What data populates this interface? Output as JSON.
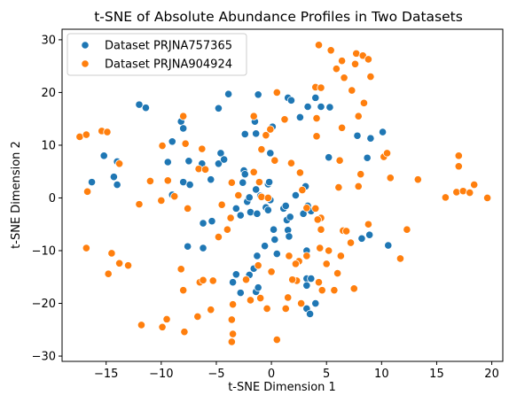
{
  "chart_data": {
    "type": "scatter",
    "title": "t-SNE of Absolute Abundance Profiles in Two Datasets",
    "xlabel": "t-SNE Dimension 1",
    "ylabel": "t-SNE Dimension 2",
    "xlim": [
      -19,
      21
    ],
    "ylim": [
      -31,
      32
    ],
    "xticks": [
      -15,
      -10,
      -5,
      0,
      5,
      10,
      15,
      20
    ],
    "yticks": [
      -30,
      -20,
      -10,
      0,
      10,
      20,
      30
    ],
    "grid": false,
    "legend_position": "top-left",
    "series": [
      {
        "name": "Dataset PRJNA757365",
        "color": "#1f77b4",
        "points": [
          [
            -15.2,
            8.0
          ],
          [
            -14.0,
            6.9
          ],
          [
            -14.3,
            4.0
          ],
          [
            -14.0,
            2.5
          ],
          [
            -16.3,
            3.0
          ],
          [
            -12.0,
            17.7
          ],
          [
            -11.4,
            17.1
          ],
          [
            -9.0,
            10.7
          ],
          [
            -9.4,
            6.8
          ],
          [
            -8.2,
            14.5
          ],
          [
            -8.0,
            13.2
          ],
          [
            -7.5,
            7.0
          ],
          [
            -8.0,
            3.0
          ],
          [
            -7.4,
            2.5
          ],
          [
            -9.0,
            0.6
          ],
          [
            -6.3,
            6.5
          ],
          [
            -5.5,
            3.5
          ],
          [
            -4.8,
            6.5
          ],
          [
            -4.6,
            8.5
          ],
          [
            -4.3,
            7.3
          ],
          [
            -3.9,
            19.7
          ],
          [
            -4.8,
            17.0
          ],
          [
            -6.2,
            -4.8
          ],
          [
            -5.4,
            -4.4
          ],
          [
            -7.6,
            -9.2
          ],
          [
            -6.2,
            -9.5
          ],
          [
            -3.2,
            -2.0
          ],
          [
            -2.8,
            -3.3
          ],
          [
            -2.5,
            5.2
          ],
          [
            -2.4,
            4.5
          ],
          [
            -2.6,
            2.9
          ],
          [
            -2.2,
            -0.7
          ],
          [
            -2.0,
            0.1
          ],
          [
            -1.9,
            -2.7
          ],
          [
            -1.3,
            -3.0
          ],
          [
            -1.4,
            1.6
          ],
          [
            -1.0,
            0.4
          ],
          [
            -0.5,
            -1.8
          ],
          [
            -0.3,
            2.6
          ],
          [
            -0.1,
            -0.4
          ],
          [
            -0.1,
            8.5
          ],
          [
            -0.2,
            3.0
          ],
          [
            -0.3,
            -2.3
          ],
          [
            0.2,
            -6.0
          ],
          [
            0.3,
            -7.9
          ],
          [
            0.5,
            -10.6
          ],
          [
            -0.6,
            -9.1
          ],
          [
            -1.3,
            -11.0
          ],
          [
            -1.6,
            -13.4
          ],
          [
            -2.0,
            -14.6
          ],
          [
            -3.2,
            -14.5
          ],
          [
            -3.5,
            -16.0
          ],
          [
            -2.8,
            -18.0
          ],
          [
            -1.4,
            -17.8
          ],
          [
            -1.2,
            -17.0
          ],
          [
            -1.5,
            14.5
          ],
          [
            -2.4,
            12.1
          ],
          [
            -1.4,
            12.2
          ],
          [
            -1.2,
            19.6
          ],
          [
            0.1,
            13.5
          ],
          [
            1.1,
            -2.0
          ],
          [
            1.3,
            -1.5
          ],
          [
            1.4,
            -4.2
          ],
          [
            1.7,
            -3.6
          ],
          [
            1.5,
            -6.1
          ],
          [
            1.6,
            -7.3
          ],
          [
            2.2,
            0.5
          ],
          [
            2.9,
            -3.0
          ],
          [
            2.6,
            15.3
          ],
          [
            3.3,
            17.3
          ],
          [
            4.0,
            19.0
          ],
          [
            1.5,
            19.0
          ],
          [
            1.8,
            18.5
          ],
          [
            3.1,
            2.2
          ],
          [
            3.3,
            -1.5
          ],
          [
            3.6,
            -2.5
          ],
          [
            3.2,
            -10.0
          ],
          [
            3.2,
            -15.3
          ],
          [
            3.2,
            -16.6
          ],
          [
            3.6,
            -15.3
          ],
          [
            3.2,
            -21.0
          ],
          [
            3.5,
            -22.0
          ],
          [
            4.0,
            -20.0
          ],
          [
            5.3,
            17.2
          ],
          [
            7.8,
            11.8
          ],
          [
            9.0,
            11.3
          ],
          [
            8.7,
            7.6
          ],
          [
            10.1,
            12.5
          ],
          [
            8.8,
            -5.0
          ],
          [
            8.2,
            -7.7
          ],
          [
            8.9,
            -7.0
          ],
          [
            10.6,
            -9.0
          ],
          [
            5.2,
            7.7
          ],
          [
            4.5,
            17.3
          ]
        ]
      },
      {
        "name": "Dataset PRJNA904924",
        "color": "#ff7f0e",
        "points": [
          [
            -17.4,
            11.6
          ],
          [
            -16.8,
            12.0
          ],
          [
            -15.4,
            12.7
          ],
          [
            -13.8,
            6.5
          ],
          [
            -14.5,
            -10.5
          ],
          [
            -16.7,
            1.2
          ],
          [
            -16.8,
            -9.5
          ],
          [
            -13.8,
            -12.4
          ],
          [
            -14.8,
            -14.4
          ],
          [
            -13.0,
            -12.8
          ],
          [
            -12.0,
            -1.2
          ],
          [
            -11.0,
            3.2
          ],
          [
            -10.0,
            -0.5
          ],
          [
            -9.9,
            9.9
          ],
          [
            -9.4,
            3.3
          ],
          [
            -8.8,
            0.3
          ],
          [
            -8.0,
            15.5
          ],
          [
            -7.8,
            10.3
          ],
          [
            -6.6,
            5.5
          ],
          [
            -6.3,
            9.3
          ],
          [
            -6.0,
            5.4
          ],
          [
            -8.2,
            -13.5
          ],
          [
            -7.6,
            -2.0
          ],
          [
            -8.0,
            -17.5
          ],
          [
            -6.5,
            -16.0
          ],
          [
            -6.2,
            -15.6
          ],
          [
            -5.5,
            -21.2
          ],
          [
            -6.7,
            -22.5
          ],
          [
            -7.9,
            -25.4
          ],
          [
            -9.5,
            -23.0
          ],
          [
            -9.9,
            -24.5
          ],
          [
            -11.8,
            -24.1
          ],
          [
            -5.3,
            -15.7
          ],
          [
            -4.8,
            -7.4
          ],
          [
            -4.5,
            -1.3
          ],
          [
            -3.0,
            0.5
          ],
          [
            -3.7,
            -3.8
          ],
          [
            -3.6,
            2.9
          ],
          [
            -3.5,
            -20.2
          ],
          [
            -3.6,
            -23.1
          ],
          [
            -3.5,
            -25.8
          ],
          [
            -3.6,
            -27.3
          ],
          [
            -2.3,
            -15.5
          ],
          [
            -1.9,
            -19.4
          ],
          [
            -1.6,
            4.9
          ],
          [
            -1.1,
            3.0
          ],
          [
            -0.9,
            0.2
          ],
          [
            -0.3,
            0.0
          ],
          [
            -0.9,
            9.2
          ],
          [
            -0.5,
            11.9
          ],
          [
            -0.1,
            13.0
          ],
          [
            -1.6,
            15.5
          ],
          [
            0.5,
            20.0
          ],
          [
            1.2,
            14.9
          ],
          [
            0.3,
            7.1
          ],
          [
            1.8,
            6.6
          ],
          [
            2.6,
            4.8
          ],
          [
            2.8,
            1.5
          ],
          [
            3.2,
            -1.9
          ],
          [
            4.0,
            -2.0
          ],
          [
            4.5,
            -3.8
          ],
          [
            4.2,
            -4.1
          ],
          [
            4.5,
            -6.0
          ],
          [
            5.2,
            -10.0
          ],
          [
            5.0,
            -12.5
          ],
          [
            2.5,
            -12.0
          ],
          [
            2.3,
            -15.7
          ],
          [
            1.9,
            -15.5
          ],
          [
            1.5,
            -18.9
          ],
          [
            2.7,
            -20.0
          ],
          [
            1.3,
            -21.0
          ],
          [
            -0.4,
            -21.0
          ],
          [
            -1.0,
            -19.0
          ],
          [
            -1.2,
            -12.8
          ],
          [
            0.0,
            -14.0
          ],
          [
            1.6,
            -11.0
          ],
          [
            2.2,
            -12.5
          ],
          [
            0.5,
            -26.9
          ],
          [
            3.2,
            -11.0
          ],
          [
            4.4,
            -9.5
          ],
          [
            4.3,
            -16.0
          ],
          [
            4.6,
            -17.5
          ],
          [
            5.7,
            -17.5
          ],
          [
            6.0,
            -14.3
          ],
          [
            6.3,
            -11.0
          ],
          [
            6.5,
            -6.2
          ],
          [
            6.8,
            -6.3
          ],
          [
            7.2,
            -8.5
          ],
          [
            7.5,
            -17.2
          ],
          [
            8.8,
            -5.0
          ],
          [
            6.4,
            13.3
          ],
          [
            6.1,
            2.0
          ],
          [
            6.2,
            7.1
          ],
          [
            4.1,
            15.1
          ],
          [
            4.1,
            11.7
          ],
          [
            4.0,
            21.0
          ],
          [
            4.5,
            20.9
          ],
          [
            4.3,
            29.0
          ],
          [
            5.4,
            28.0
          ],
          [
            5.9,
            24.5
          ],
          [
            6.4,
            26.0
          ],
          [
            6.6,
            22.8
          ],
          [
            7.3,
            20.4
          ],
          [
            7.6,
            25.4
          ],
          [
            7.7,
            27.4
          ],
          [
            8.3,
            27.0
          ],
          [
            8.8,
            26.3
          ],
          [
            9.0,
            23.0
          ],
          [
            8.4,
            18.0
          ],
          [
            7.9,
            15.5
          ],
          [
            8.1,
            4.5
          ],
          [
            7.9,
            2.2
          ],
          [
            10.2,
            7.8
          ],
          [
            10.8,
            3.8
          ],
          [
            11.7,
            -11.5
          ],
          [
            12.3,
            -6.0
          ],
          [
            13.3,
            3.5
          ],
          [
            15.8,
            0.1
          ],
          [
            16.8,
            1.1
          ],
          [
            17.0,
            6.0
          ],
          [
            17.0,
            8.0
          ],
          [
            17.4,
            1.3
          ],
          [
            18.0,
            1.0
          ],
          [
            18.4,
            2.5
          ],
          [
            19.6,
            0.0
          ],
          [
            10.5,
            8.5
          ],
          [
            -14.9,
            12.5
          ],
          [
            -4.0,
            -6.0
          ]
        ]
      }
    ]
  }
}
